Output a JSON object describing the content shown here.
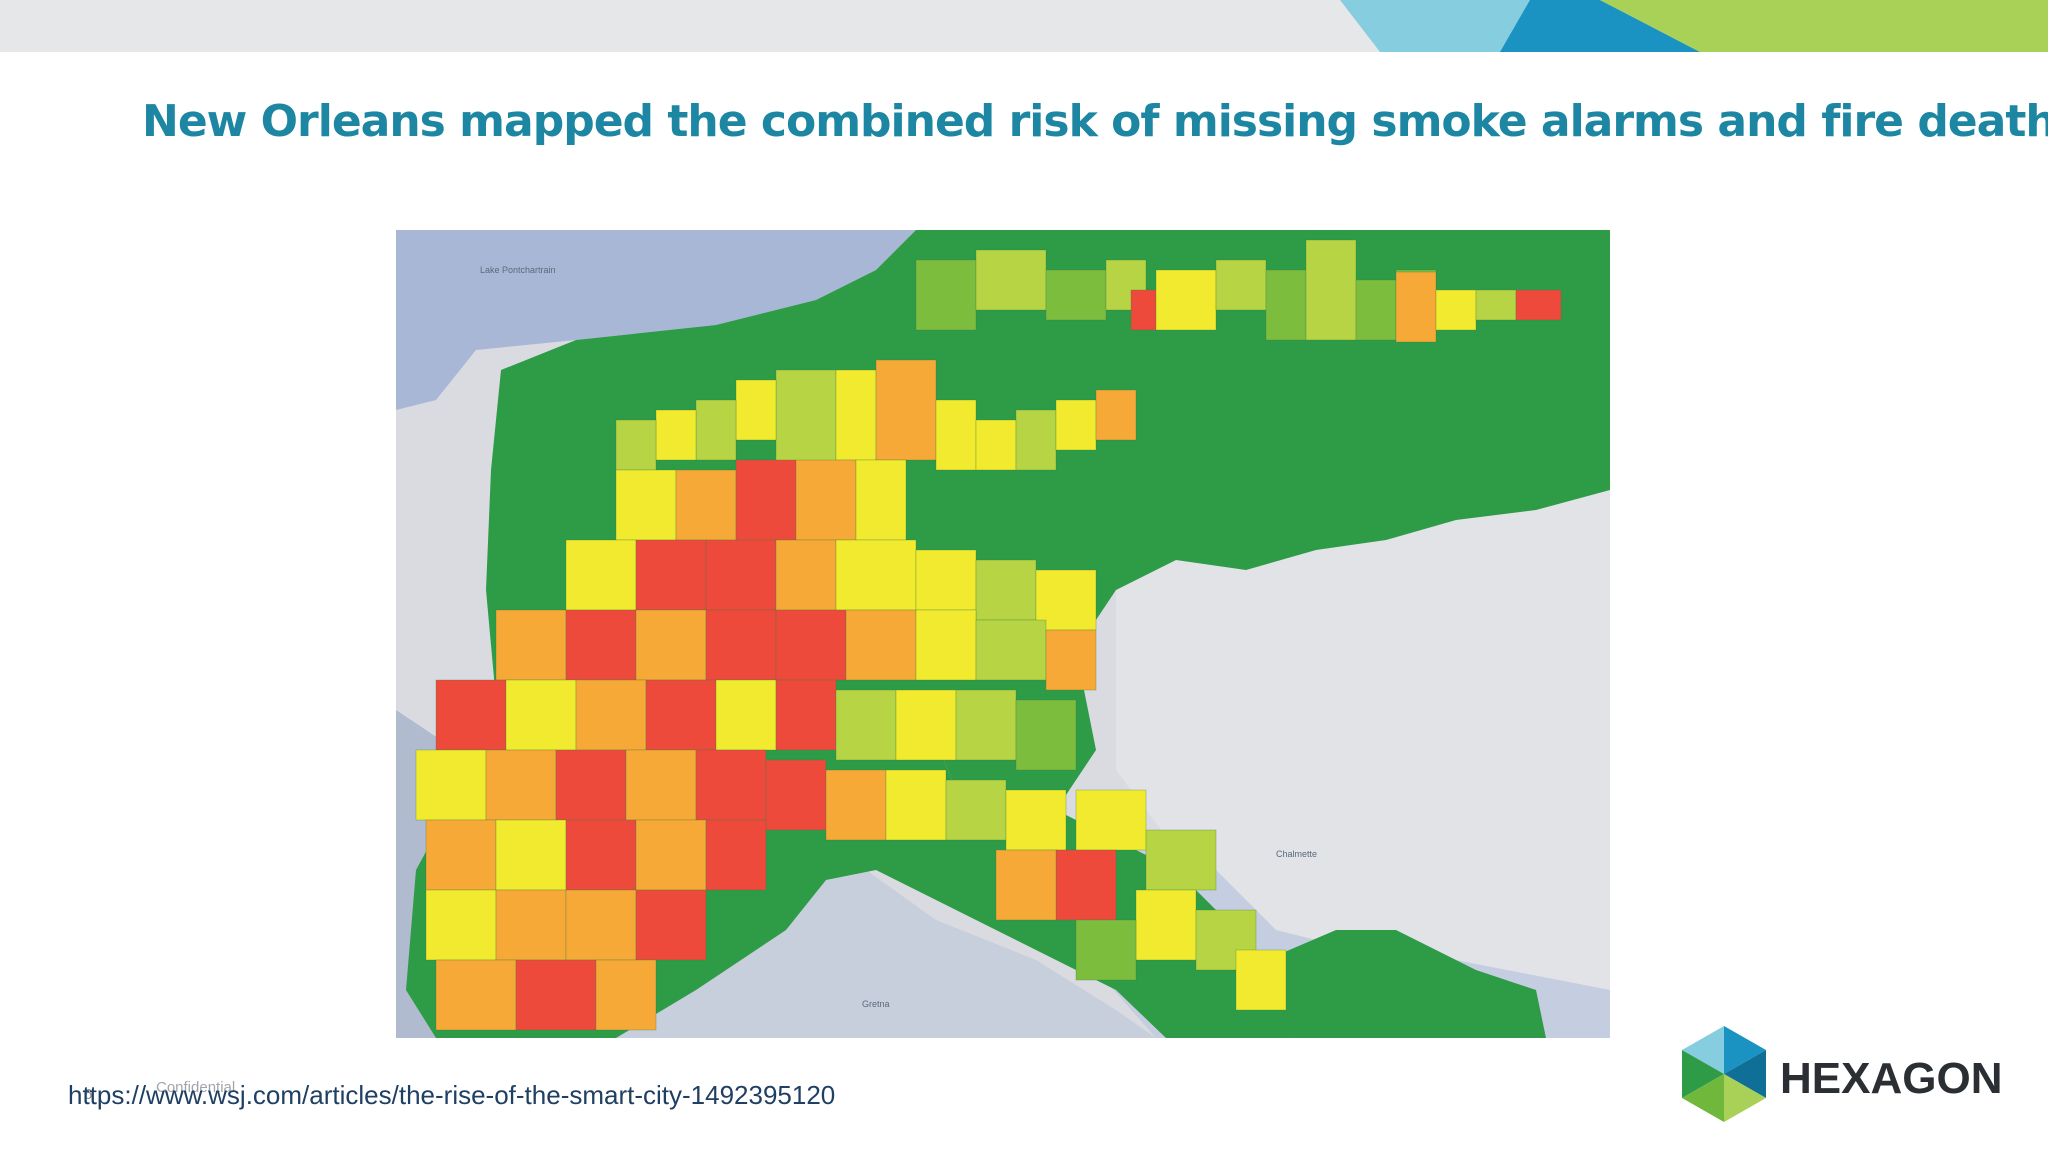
{
  "slide": {
    "title": "New Orleans mapped the combined risk of missing smoke alarms and fire deaths",
    "source_url": "https://www.wsj.com/articles/the-rise-of-the-smart-city-1492395120",
    "footer_confidential": "Confidential",
    "page_number": "6"
  },
  "map": {
    "lake_label": "Lake Pontchartrain",
    "place_label": "Chalmette",
    "gretna_label": "Gretna",
    "risk_palette": {
      "low": "#2e9b47",
      "low_mid": "#7dbd3e",
      "mid_low": "#b6d444",
      "mid": "#f2ea2e",
      "mid_high": "#f6a936",
      "high": "#ee4a3c"
    },
    "water_color": "#a9b7d6",
    "land_color": "#d9dbe0"
  },
  "logo": {
    "text": "HEXAGON",
    "icon": "hexagon-logo-icon"
  },
  "colors": {
    "title": "#1d87a3",
    "accent_teal": "#3a9fc4",
    "accent_green": "#a9d158"
  }
}
